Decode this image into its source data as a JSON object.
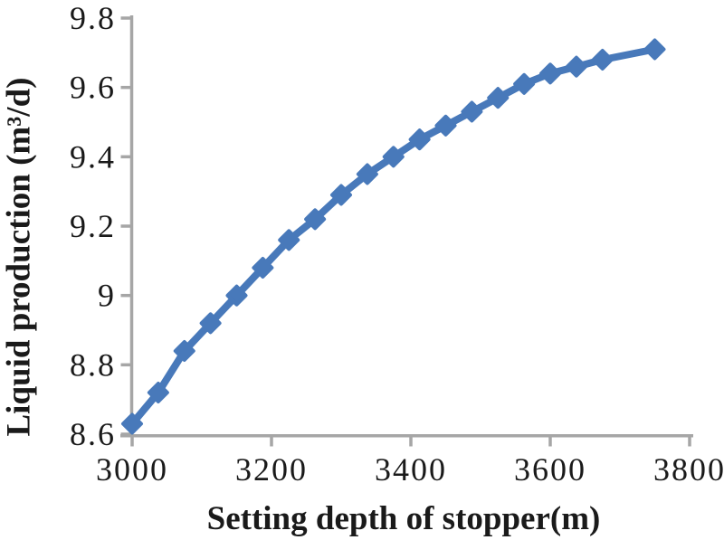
{
  "colors": {
    "series": "#4879BA",
    "axis": "#A6A6A6",
    "text": "#1A1A1A",
    "background": "#FFFFFF"
  },
  "chart_data": {
    "type": "line",
    "title": "",
    "xlabel": "Setting depth of stopper(m)",
    "ylabel": "Liquid production (m³/d)",
    "xlim": [
      3000,
      3800
    ],
    "ylim": [
      8.6,
      9.8
    ],
    "x_ticks": [
      3000,
      3200,
      3400,
      3600,
      3800
    ],
    "x_tick_labels": [
      "3000",
      "3200",
      "3400",
      "3600",
      "3800"
    ],
    "y_ticks": [
      9.8,
      9.6,
      9.4,
      9.2,
      9.0,
      8.8,
      8.6
    ],
    "y_tick_labels": [
      "9.8",
      "9.6",
      "9.4",
      "9.2",
      "9",
      "8.8",
      "8.6"
    ],
    "grid": false,
    "legend": false,
    "marker": "diamond",
    "series": [
      {
        "x": [
          3000,
          3037.5,
          3075,
          3112.5,
          3150,
          3187.5,
          3225,
          3262.5,
          3300,
          3337.5,
          3375,
          3412.5,
          3450,
          3487.5,
          3525,
          3562.5,
          3600,
          3637.5,
          3675,
          3750
        ],
        "y": [
          8.63,
          8.72,
          8.84,
          8.92,
          9.0,
          9.08,
          9.16,
          9.22,
          9.29,
          9.35,
          9.4,
          9.45,
          9.49,
          9.53,
          9.57,
          9.61,
          9.64,
          9.66,
          9.68,
          9.71
        ]
      }
    ]
  }
}
